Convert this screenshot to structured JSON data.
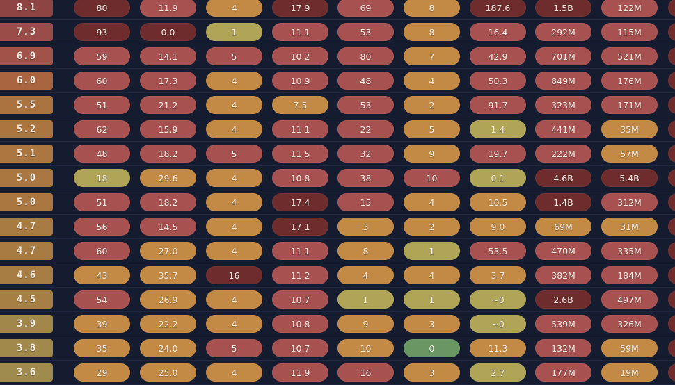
{
  "colors": {
    "background": "#161c30",
    "divider": "#1f2740",
    "dark": "#6e2d2c",
    "red": "#a75250",
    "orange": "#c38a45",
    "olive": "#b0a557",
    "green": "#6a9663"
  },
  "rows": [
    {
      "score": "8.1",
      "score_color": "#8f4444",
      "cells": [
        [
          "80",
          "dark"
        ],
        [
          "11.9",
          "red"
        ],
        [
          "4",
          "orange"
        ],
        [
          "17.9",
          "dark"
        ],
        [
          "69",
          "red"
        ],
        [
          "8",
          "orange"
        ],
        [
          "187.6",
          "dark"
        ],
        [
          "1.5B",
          "dark"
        ],
        [
          "122M",
          "red"
        ],
        [
          "",
          "dark"
        ]
      ]
    },
    {
      "score": "7.3",
      "score_color": "#9a4d48",
      "cells": [
        [
          "93",
          "dark"
        ],
        [
          "0.0",
          "dark"
        ],
        [
          "1",
          "olive"
        ],
        [
          "11.1",
          "red"
        ],
        [
          "53",
          "red"
        ],
        [
          "8",
          "orange"
        ],
        [
          "16.4",
          "red"
        ],
        [
          "292M",
          "red"
        ],
        [
          "115M",
          "red"
        ],
        [
          "",
          "dark"
        ]
      ]
    },
    {
      "score": "6.9",
      "score_color": "#a1534a",
      "cells": [
        [
          "59",
          "red"
        ],
        [
          "14.1",
          "red"
        ],
        [
          "5",
          "red"
        ],
        [
          "10.2",
          "red"
        ],
        [
          "80",
          "red"
        ],
        [
          "7",
          "orange"
        ],
        [
          "42.9",
          "red"
        ],
        [
          "701M",
          "red"
        ],
        [
          "521M",
          "red"
        ],
        [
          "",
          "dark"
        ]
      ]
    },
    {
      "score": "6.0",
      "score_color": "#a8653f",
      "cells": [
        [
          "60",
          "red"
        ],
        [
          "17.3",
          "red"
        ],
        [
          "4",
          "orange"
        ],
        [
          "10.9",
          "red"
        ],
        [
          "48",
          "red"
        ],
        [
          "4",
          "orange"
        ],
        [
          "50.3",
          "red"
        ],
        [
          "849M",
          "red"
        ],
        [
          "176M",
          "red"
        ],
        [
          "",
          "dark"
        ]
      ]
    },
    {
      "score": "5.5",
      "score_color": "#ab733f",
      "cells": [
        [
          "51",
          "red"
        ],
        [
          "21.2",
          "red"
        ],
        [
          "4",
          "orange"
        ],
        [
          "7.5",
          "orange"
        ],
        [
          "53",
          "red"
        ],
        [
          "2",
          "orange"
        ],
        [
          "91.7",
          "red"
        ],
        [
          "323M",
          "red"
        ],
        [
          "171M",
          "red"
        ],
        [
          "",
          "dark"
        ]
      ]
    },
    {
      "score": "5.2",
      "score_color": "#ab7540",
      "cells": [
        [
          "62",
          "red"
        ],
        [
          "15.9",
          "red"
        ],
        [
          "4",
          "orange"
        ],
        [
          "11.1",
          "red"
        ],
        [
          "22",
          "red"
        ],
        [
          "5",
          "orange"
        ],
        [
          "1.4",
          "olive"
        ],
        [
          "441M",
          "red"
        ],
        [
          "35M",
          "orange"
        ],
        [
          "",
          "dark"
        ]
      ]
    },
    {
      "score": "5.1",
      "score_color": "#ab7640",
      "cells": [
        [
          "48",
          "red"
        ],
        [
          "18.2",
          "red"
        ],
        [
          "5",
          "red"
        ],
        [
          "11.5",
          "red"
        ],
        [
          "32",
          "red"
        ],
        [
          "9",
          "orange"
        ],
        [
          "19.7",
          "red"
        ],
        [
          "222M",
          "red"
        ],
        [
          "57M",
          "orange"
        ],
        [
          "",
          "dark"
        ]
      ]
    },
    {
      "score": "5.0",
      "score_color": "#aa7741",
      "cells": [
        [
          "18",
          "olive"
        ],
        [
          "29.6",
          "orange"
        ],
        [
          "4",
          "orange"
        ],
        [
          "10.8",
          "red"
        ],
        [
          "38",
          "red"
        ],
        [
          "10",
          "red"
        ],
        [
          "0.1",
          "olive"
        ],
        [
          "4.6B",
          "dark"
        ],
        [
          "5.4B",
          "dark"
        ],
        [
          "",
          "dark"
        ]
      ]
    },
    {
      "score": "5.0",
      "score_color": "#aa7741",
      "cells": [
        [
          "51",
          "red"
        ],
        [
          "18.2",
          "red"
        ],
        [
          "4",
          "orange"
        ],
        [
          "17.4",
          "dark"
        ],
        [
          "15",
          "red"
        ],
        [
          "4",
          "orange"
        ],
        [
          "10.5",
          "orange"
        ],
        [
          "1.4B",
          "dark"
        ],
        [
          "312M",
          "red"
        ],
        [
          "",
          "dark"
        ]
      ]
    },
    {
      "score": "4.7",
      "score_color": "#a87b43",
      "cells": [
        [
          "56",
          "red"
        ],
        [
          "14.5",
          "red"
        ],
        [
          "4",
          "orange"
        ],
        [
          "17.1",
          "dark"
        ],
        [
          "3",
          "orange"
        ],
        [
          "2",
          "orange"
        ],
        [
          "9.0",
          "orange"
        ],
        [
          "69M",
          "orange"
        ],
        [
          "31M",
          "orange"
        ],
        [
          "",
          "dark"
        ]
      ]
    },
    {
      "score": "4.7",
      "score_color": "#a87b43",
      "cells": [
        [
          "60",
          "red"
        ],
        [
          "27.0",
          "orange"
        ],
        [
          "4",
          "orange"
        ],
        [
          "11.1",
          "red"
        ],
        [
          "8",
          "orange"
        ],
        [
          "1",
          "olive"
        ],
        [
          "53.5",
          "red"
        ],
        [
          "470M",
          "red"
        ],
        [
          "335M",
          "red"
        ],
        [
          "",
          "dark"
        ]
      ]
    },
    {
      "score": "4.6",
      "score_color": "#a77d44",
      "cells": [
        [
          "43",
          "orange"
        ],
        [
          "35.7",
          "orange"
        ],
        [
          "16",
          "dark"
        ],
        [
          "11.2",
          "red"
        ],
        [
          "4",
          "orange"
        ],
        [
          "4",
          "orange"
        ],
        [
          "3.7",
          "orange"
        ],
        [
          "382M",
          "red"
        ],
        [
          "184M",
          "red"
        ],
        [
          "",
          "dark"
        ]
      ]
    },
    {
      "score": "4.5",
      "score_color": "#a67f45",
      "cells": [
        [
          "54",
          "red"
        ],
        [
          "26.9",
          "orange"
        ],
        [
          "4",
          "orange"
        ],
        [
          "10.7",
          "red"
        ],
        [
          "1",
          "olive"
        ],
        [
          "1",
          "olive"
        ],
        [
          "~0",
          "olive"
        ],
        [
          "2.6B",
          "dark"
        ],
        [
          "497M",
          "red"
        ],
        [
          "",
          "dark"
        ]
      ]
    },
    {
      "score": "3.9",
      "score_color": "#a2874a",
      "cells": [
        [
          "39",
          "orange"
        ],
        [
          "22.2",
          "orange"
        ],
        [
          "4",
          "orange"
        ],
        [
          "10.8",
          "red"
        ],
        [
          "9",
          "orange"
        ],
        [
          "3",
          "orange"
        ],
        [
          "~0",
          "olive"
        ],
        [
          "539M",
          "red"
        ],
        [
          "326M",
          "red"
        ],
        [
          "",
          "dark"
        ]
      ]
    },
    {
      "score": "3.8",
      "score_color": "#a1894b",
      "cells": [
        [
          "35",
          "orange"
        ],
        [
          "24.0",
          "orange"
        ],
        [
          "5",
          "red"
        ],
        [
          "10.7",
          "red"
        ],
        [
          "10",
          "orange"
        ],
        [
          "0",
          "green"
        ],
        [
          "11.3",
          "orange"
        ],
        [
          "132M",
          "red"
        ],
        [
          "59M",
          "orange"
        ],
        [
          "",
          "dark"
        ]
      ]
    },
    {
      "score": "3.6",
      "score_color": "#9f8b4d",
      "cells": [
        [
          "29",
          "orange"
        ],
        [
          "25.0",
          "orange"
        ],
        [
          "4",
          "orange"
        ],
        [
          "11.9",
          "red"
        ],
        [
          "16",
          "red"
        ],
        [
          "3",
          "orange"
        ],
        [
          "2.7",
          "olive"
        ],
        [
          "177M",
          "red"
        ],
        [
          "19M",
          "orange"
        ],
        [
          "",
          "dark"
        ]
      ]
    }
  ]
}
